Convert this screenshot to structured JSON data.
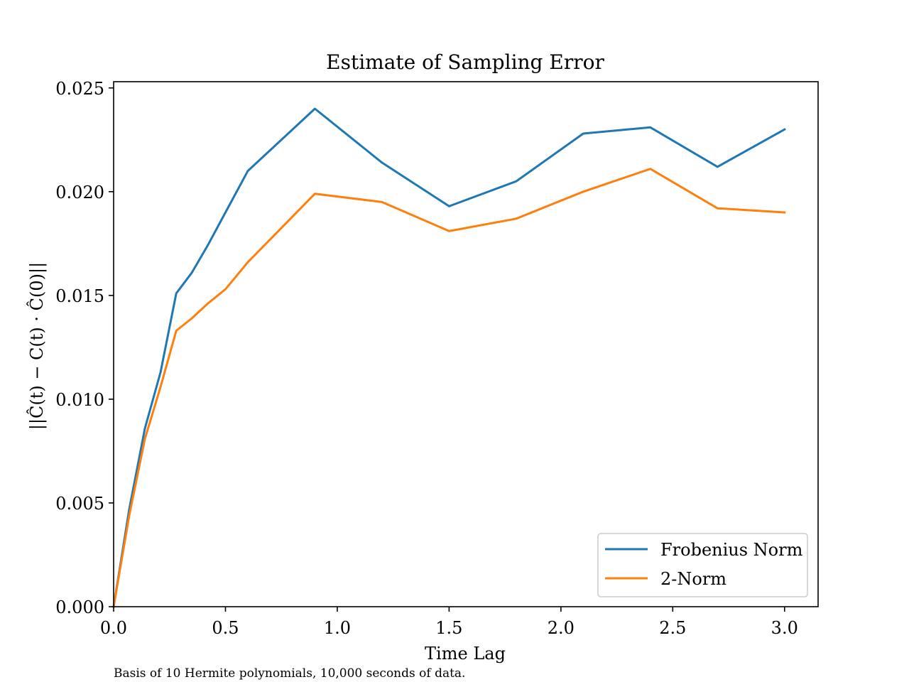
{
  "caption": "Basis of 10 Hermite polynomials, 10,000 seconds of data.",
  "chart_data": {
    "type": "line",
    "title": "Estimate of Sampling Error",
    "xlabel": "Time Lag",
    "ylabel": "||Ĉ(t) − C(t) · Ĉ(0)||",
    "xlim": [
      0.0,
      3.15
    ],
    "ylim": [
      0.0,
      0.0253
    ],
    "xticks": [
      "0.0",
      "0.5",
      "1.0",
      "1.5",
      "2.0",
      "2.5",
      "3.0"
    ],
    "yticks": [
      "0.000",
      "0.005",
      "0.010",
      "0.015",
      "0.020",
      "0.025"
    ],
    "grid": false,
    "legend_position": "lower-right",
    "series": [
      {
        "name": "Frobenius Norm",
        "color": "#1f77b4",
        "x": [
          0.0,
          0.07,
          0.14,
          0.21,
          0.28,
          0.35,
          0.42,
          0.5,
          0.6,
          0.9,
          1.2,
          1.5,
          1.8,
          2.1,
          2.4,
          2.7,
          3.0
        ],
        "y": [
          0.0,
          0.0047,
          0.0086,
          0.0113,
          0.0151,
          0.0161,
          0.0174,
          0.019,
          0.021,
          0.024,
          0.0214,
          0.0193,
          0.0205,
          0.0228,
          0.0231,
          0.0212,
          0.023
        ]
      },
      {
        "name": "2-Norm",
        "color": "#ff7f0e",
        "x": [
          0.0,
          0.07,
          0.14,
          0.21,
          0.28,
          0.35,
          0.42,
          0.5,
          0.6,
          0.9,
          1.2,
          1.5,
          1.8,
          2.1,
          2.4,
          2.7,
          3.0
        ],
        "y": [
          0.0,
          0.0044,
          0.0081,
          0.0106,
          0.0133,
          0.0139,
          0.0146,
          0.0153,
          0.0166,
          0.0199,
          0.0195,
          0.0181,
          0.0187,
          0.02,
          0.0211,
          0.0192,
          0.019
        ]
      }
    ]
  }
}
